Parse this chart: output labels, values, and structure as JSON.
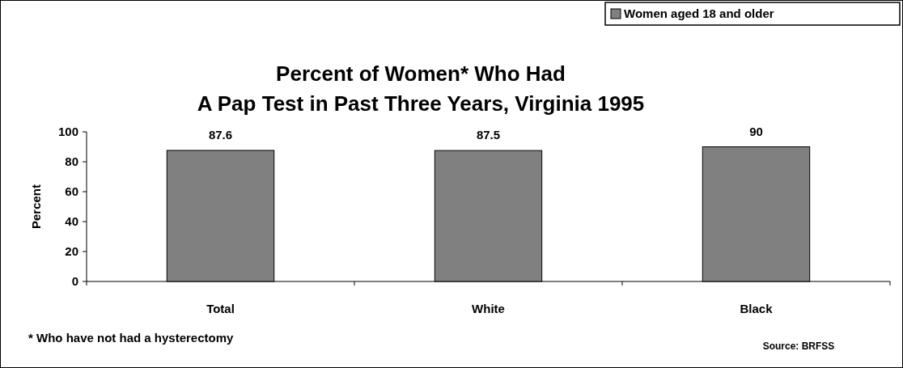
{
  "chart_data": {
    "type": "bar",
    "title": "Percent of Women* Who Had\nA Pap Test in Past Three Years, Virginia 1995",
    "ylabel": "Percent",
    "categories": [
      "Total",
      "White",
      "Black"
    ],
    "series": [
      {
        "name": "Women aged 18 and older",
        "color": "#808080",
        "values": [
          87.6,
          87.5,
          90
        ]
      }
    ],
    "ylim": [
      0,
      100
    ],
    "yticks": [
      0,
      20,
      40,
      60,
      80,
      100
    ],
    "data_labels": true,
    "legend": "top right",
    "grid": false,
    "annotations": [
      "* Who have not had a hysterectomy",
      "Source: BRFSS"
    ]
  }
}
